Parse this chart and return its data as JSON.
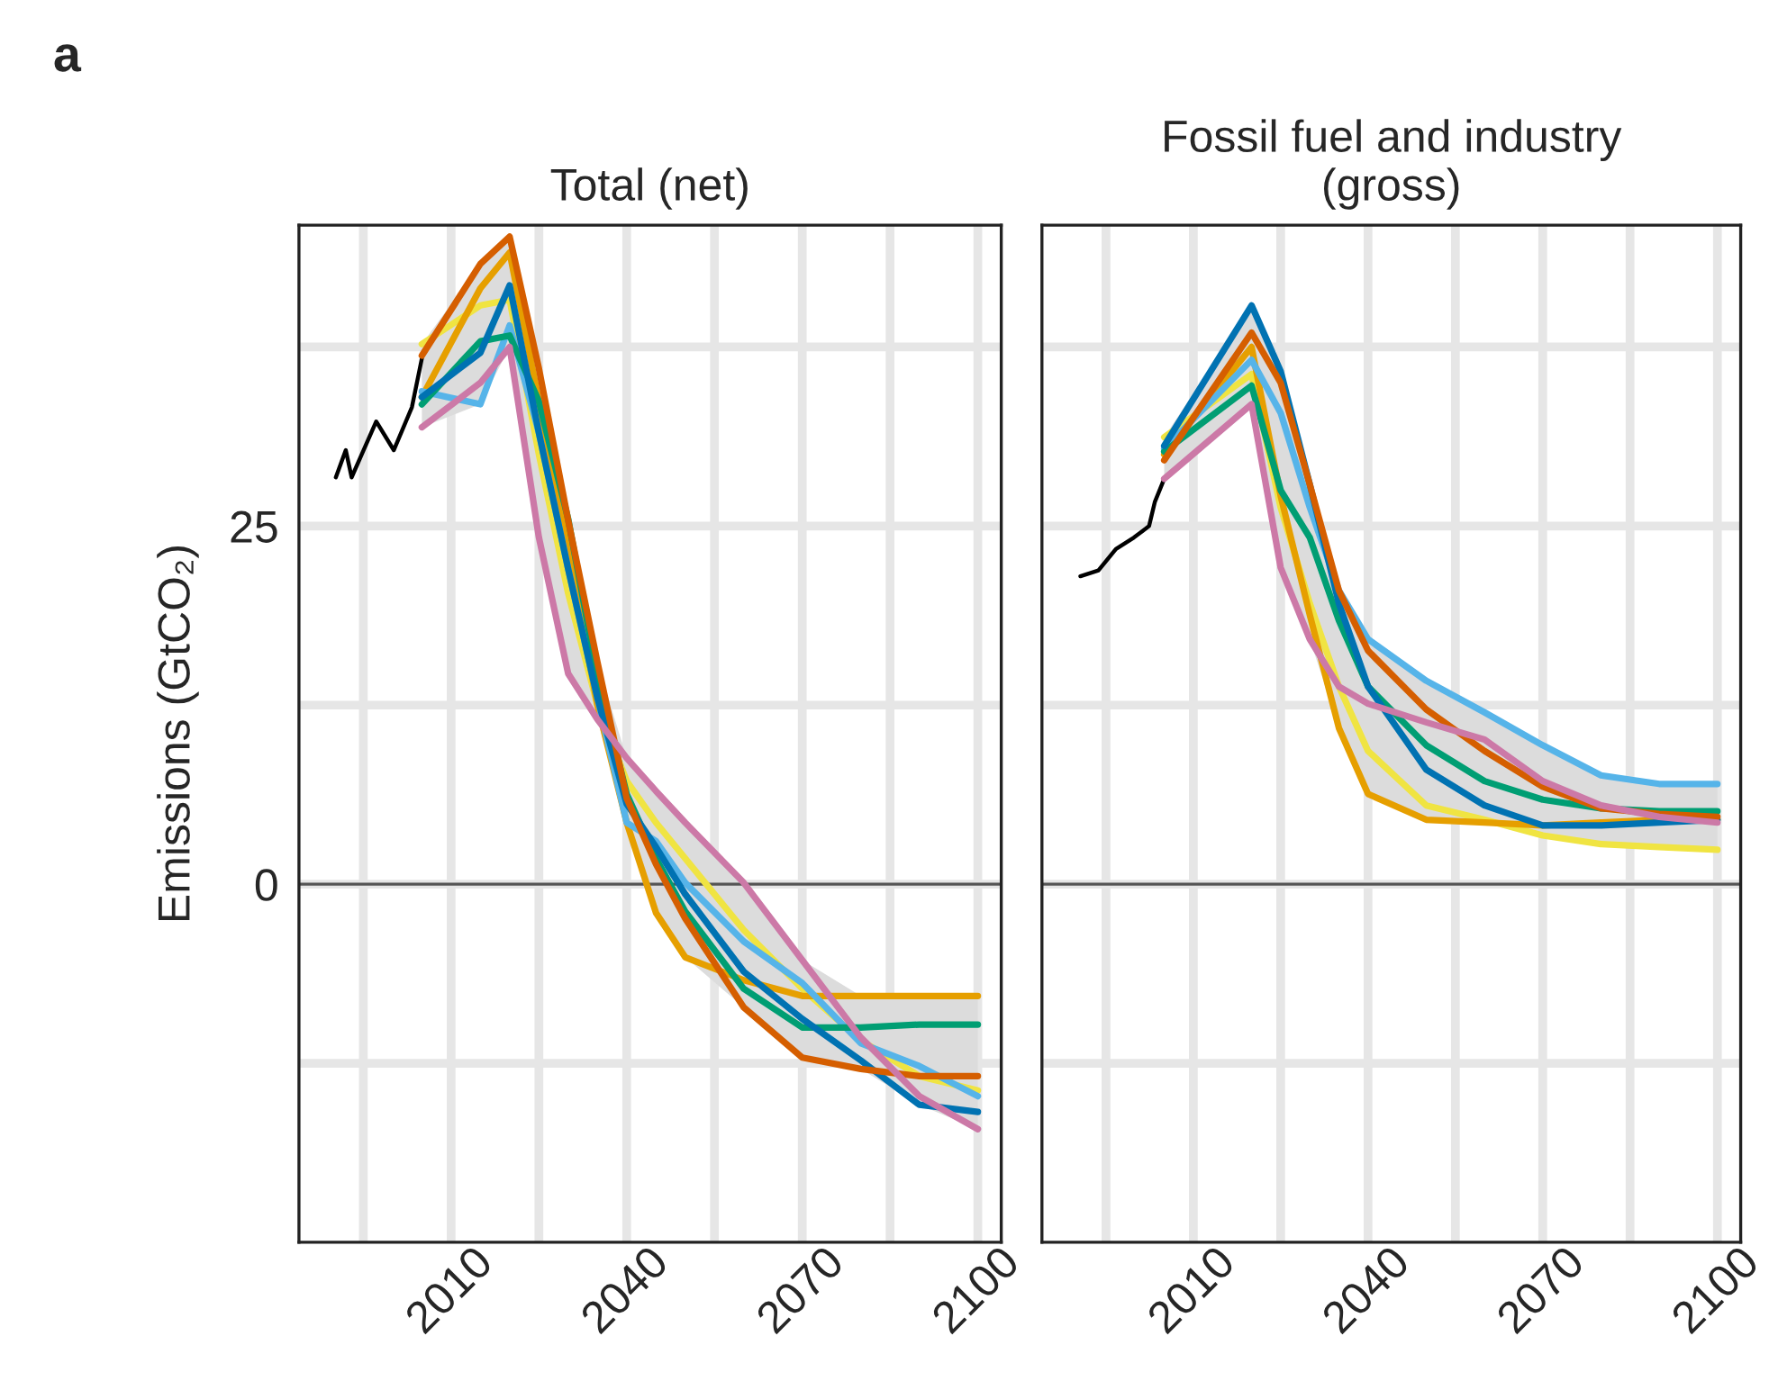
{
  "chart_data": [
    {
      "type": "line",
      "title": "Total (net)",
      "ylabel": "Emissions (GtCO₂)",
      "annotations": [
        "a"
      ],
      "xlim": [
        1984,
        2104
      ],
      "xticks": [
        {
          "value": 1995,
          "label": null
        },
        2010,
        {
          "value": 2025,
          "label": null
        },
        2040,
        {
          "value": 2055,
          "label": null
        },
        2070,
        {
          "value": 2085,
          "label": null
        },
        2100
      ],
      "ylim": [
        -25,
        46
      ],
      "yticks": [
        {
          "value": -12.5,
          "label": null
        },
        0,
        {
          "value": 12.5,
          "label": null
        },
        25,
        {
          "value": 37.5,
          "label": null
        }
      ],
      "grid": true,
      "legend": false,
      "ref_lines": [
        {
          "axis": "y",
          "value": 0,
          "color": "#555555"
        }
      ],
      "x": [
        2005,
        2015,
        2020,
        2025,
        2030,
        2035,
        2040,
        2045,
        2050,
        2060,
        2070,
        2080,
        2090,
        2100
      ],
      "series": [
        {
          "color": "#000000",
          "x": [
            1990.3,
            1992,
            1993,
            1997.2,
            2000.2,
            2003.3,
            2005
          ],
          "values": [
            28.4,
            30.3,
            28.4,
            32.3,
            30.3,
            33.3,
            36.7
          ]
        },
        {
          "color": "#f0e442",
          "values": [
            37.7,
            40.4,
            40.8,
            30,
            20.3,
            12.5,
            7.2,
            4.3,
            1.8,
            -3.2,
            -7.3,
            -10.9,
            -13.4,
            -14.4
          ],
          "lower": [
            31.9,
            33.5,
            37.5,
            24.2,
            14.7,
            11.5,
            4.3,
            -2,
            -5.1,
            -8.6,
            -12.1,
            -12.9,
            -15.4,
            -17.1
          ],
          "upper": [
            37.7,
            43.3,
            45.2,
            36,
            25.5,
            15.5,
            8.8,
            6.5,
            4.3,
            0.1,
            -5.3,
            -7.8,
            -7.8,
            -7.8
          ]
        },
        {
          "color": "#e69f00",
          "values": [
            34,
            41.6,
            44.1,
            33.7,
            23.3,
            12.5,
            4.3,
            -2,
            -5.1,
            -6.7,
            -7.8,
            -7.8,
            -7.8,
            -7.8
          ]
        },
        {
          "color": "#56b4e9",
          "values": [
            34.4,
            33.5,
            39,
            31.5,
            22,
            13,
            4.3,
            3,
            0.1,
            -4.0,
            -6.9,
            -11.1,
            -12.7,
            -14.8
          ]
        },
        {
          "color": "#009e73",
          "values": [
            33.5,
            37.9,
            38.3,
            33.7,
            25.5,
            14.5,
            6.3,
            1.8,
            -1.9,
            -7.3,
            -10.0,
            -10.0,
            -9.8,
            -9.8
          ]
        },
        {
          "color": "#0072b2",
          "values": [
            34,
            37.1,
            41.8,
            31.5,
            22,
            13,
            5.6,
            2.6,
            -0.7,
            -6.1,
            -9.4,
            -12.3,
            -15.4,
            -15.9
          ]
        },
        {
          "color": "#d55e00",
          "values": [
            36.9,
            43.3,
            45.2,
            36,
            25.4,
            15.5,
            6,
            1.4,
            -2.4,
            -8.6,
            -12.1,
            -12.9,
            -13.4,
            -13.4
          ]
        },
        {
          "color": "#cc79a7",
          "values": [
            31.9,
            35,
            37.5,
            24.2,
            14.7,
            11.5,
            8.8,
            6.5,
            4.3,
            0.1,
            -5.3,
            -10.7,
            -14.8,
            -17.1
          ]
        }
      ]
    },
    {
      "type": "line",
      "title": "Fossil fuel and industry\n(gross)",
      "tick_labels": "x",
      "xlim": [
        1984,
        2104
      ],
      "xticks": [
        {
          "value": 1995,
          "label": null
        },
        2010,
        {
          "value": 2025,
          "label": null
        },
        2040,
        {
          "value": 2055,
          "label": null
        },
        2070,
        {
          "value": 2085,
          "label": null
        },
        2100
      ],
      "ylim": [
        -25,
        46
      ],
      "yticks": [
        {
          "value": -12.5,
          "label": null
        },
        {
          "value": 0,
          "label": null
        },
        {
          "value": 12.5,
          "label": null
        },
        {
          "value": 25,
          "label": null
        },
        {
          "value": 37.5,
          "label": null
        }
      ],
      "grid": true,
      "legend": false,
      "ref_lines": [
        {
          "axis": "y",
          "value": 0,
          "color": "#555555"
        }
      ],
      "x": [
        2005,
        2020,
        2025,
        2030,
        2035,
        2040,
        2050,
        2060,
        2070,
        2080,
        2090,
        2100
      ],
      "series": [
        {
          "color": "#000000",
          "x": [
            1990.6,
            1993.7,
            1996.7,
            1999.8,
            2002.4,
            2003.4,
            2005
          ],
          "values": [
            21.5,
            21.9,
            23.4,
            24.2,
            25.0,
            26.7,
            28.3
          ]
        },
        {
          "color": "#f0e442",
          "values": [
            31.2,
            35.6,
            26.3,
            19.6,
            13.8,
            9.3,
            5.5,
            4.5,
            3.4,
            2.8,
            2.6,
            2.4
          ],
          "lower": [
            28.3,
            33.5,
            22.1,
            17.1,
            10.9,
            6.3,
            4.5,
            4.3,
            3.4,
            2.8,
            2.6,
            2.4
          ],
          "upper": [
            31.2,
            40.4,
            35.8,
            27.9,
            20.5,
            17.1,
            14.2,
            12.0,
            9.7,
            7.6,
            7.0,
            7.0
          ]
        },
        {
          "color": "#e69f00",
          "values": [
            30.0,
            37.5,
            27.1,
            18.8,
            10.9,
            6.3,
            4.5,
            4.3,
            4.1,
            4.3,
            4.5,
            4.5
          ]
        },
        {
          "color": "#56b4e9",
          "values": [
            30.4,
            36.6,
            32.9,
            26.3,
            20.5,
            17.1,
            14.2,
            12.0,
            9.7,
            7.6,
            7.0,
            7.0
          ]
        },
        {
          "color": "#009e73",
          "values": [
            30.2,
            34.8,
            27.5,
            24.2,
            18.4,
            13.8,
            9.7,
            7.2,
            5.9,
            5.3,
            5.1,
            5.1
          ]
        },
        {
          "color": "#0072b2",
          "values": [
            30.6,
            40.4,
            35.8,
            27.9,
            19.6,
            13.8,
            8.0,
            5.5,
            4.1,
            4.1,
            4.3,
            4.5
          ]
        },
        {
          "color": "#d55e00",
          "values": [
            29.6,
            38.5,
            35.0,
            27.9,
            20.5,
            16.3,
            12.2,
            9.3,
            6.8,
            5.3,
            4.9,
            4.7
          ]
        },
        {
          "color": "#cc79a7",
          "values": [
            28.3,
            33.5,
            22.1,
            17.1,
            13.8,
            12.6,
            11.3,
            10.1,
            7.2,
            5.5,
            4.7,
            4.3
          ]
        }
      ]
    }
  ]
}
